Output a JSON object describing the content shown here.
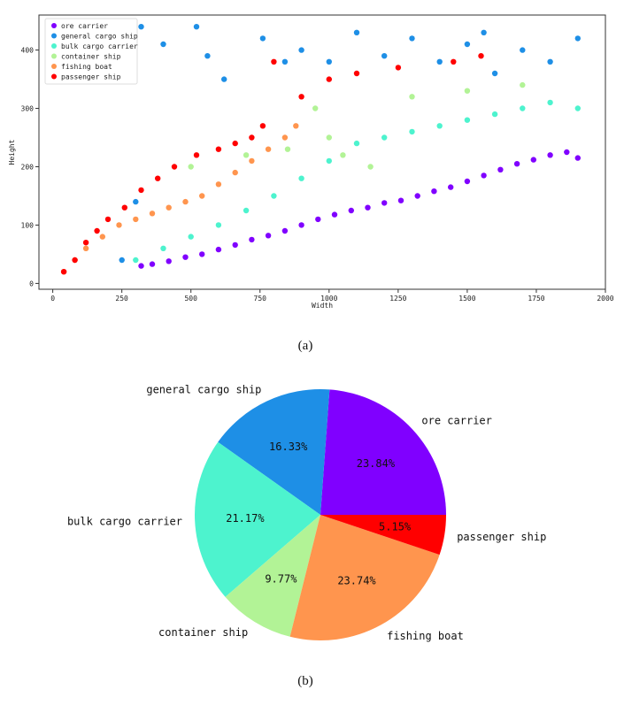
{
  "chart_data": [
    {
      "type": "scatter",
      "xlabel": "Width",
      "ylabel": "Height",
      "xlim": [
        -50,
        2000
      ],
      "ylim": [
        -10,
        460
      ],
      "xticks": [
        0,
        250,
        500,
        750,
        1000,
        1250,
        1500,
        1750,
        2000
      ],
      "yticks": [
        0,
        100,
        200,
        300,
        400
      ],
      "legend_position": "top-left",
      "series": [
        {
          "name": "ore carrier",
          "color": "#8000ff",
          "values": [
            [
              320,
              30
            ],
            [
              360,
              33
            ],
            [
              420,
              38
            ],
            [
              480,
              45
            ],
            [
              540,
              50
            ],
            [
              600,
              58
            ],
            [
              660,
              66
            ],
            [
              720,
              75
            ],
            [
              780,
              82
            ],
            [
              840,
              90
            ],
            [
              900,
              100
            ],
            [
              960,
              110
            ],
            [
              1020,
              118
            ],
            [
              1080,
              125
            ],
            [
              1140,
              130
            ],
            [
              1200,
              138
            ],
            [
              1260,
              142
            ],
            [
              1320,
              150
            ],
            [
              1380,
              158
            ],
            [
              1440,
              165
            ],
            [
              1500,
              175
            ],
            [
              1560,
              185
            ],
            [
              1620,
              195
            ],
            [
              1680,
              205
            ],
            [
              1740,
              212
            ],
            [
              1800,
              220
            ],
            [
              1860,
              225
            ],
            [
              1900,
              215
            ]
          ]
        },
        {
          "name": "general cargo ship",
          "color": "#1e8fe6",
          "values": [
            [
              250,
              40
            ],
            [
              300,
              140
            ],
            [
              320,
              440
            ],
            [
              400,
              410
            ],
            [
              520,
              440
            ],
            [
              560,
              390
            ],
            [
              620,
              350
            ],
            [
              760,
              420
            ],
            [
              840,
              380
            ],
            [
              900,
              400
            ],
            [
              1000,
              380
            ],
            [
              1100,
              430
            ],
            [
              1200,
              390
            ],
            [
              1300,
              420
            ],
            [
              1400,
              380
            ],
            [
              1500,
              410
            ],
            [
              1560,
              430
            ],
            [
              1600,
              360
            ],
            [
              1700,
              400
            ],
            [
              1800,
              380
            ],
            [
              1900,
              420
            ]
          ]
        },
        {
          "name": "bulk cargo carrier",
          "color": "#4df3ce",
          "values": [
            [
              300,
              40
            ],
            [
              400,
              60
            ],
            [
              500,
              80
            ],
            [
              600,
              100
            ],
            [
              700,
              125
            ],
            [
              800,
              150
            ],
            [
              900,
              180
            ],
            [
              1000,
              210
            ],
            [
              1100,
              240
            ],
            [
              1200,
              250
            ],
            [
              1300,
              260
            ],
            [
              1400,
              270
            ],
            [
              1500,
              280
            ],
            [
              1600,
              290
            ],
            [
              1700,
              300
            ],
            [
              1800,
              310
            ],
            [
              1900,
              300
            ]
          ]
        },
        {
          "name": "container ship",
          "color": "#b2f396",
          "values": [
            [
              500,
              200
            ],
            [
              700,
              220
            ],
            [
              850,
              230
            ],
            [
              950,
              300
            ],
            [
              1000,
              250
            ],
            [
              1050,
              220
            ],
            [
              1150,
              200
            ],
            [
              1300,
              320
            ],
            [
              1500,
              330
            ],
            [
              1700,
              340
            ]
          ]
        },
        {
          "name": "fishing boat",
          "color": "#ff954e",
          "values": [
            [
              40,
              20
            ],
            [
              80,
              40
            ],
            [
              120,
              60
            ],
            [
              180,
              80
            ],
            [
              240,
              100
            ],
            [
              300,
              110
            ],
            [
              360,
              120
            ],
            [
              420,
              130
            ],
            [
              480,
              140
            ],
            [
              540,
              150
            ],
            [
              600,
              170
            ],
            [
              660,
              190
            ],
            [
              720,
              210
            ],
            [
              780,
              230
            ],
            [
              840,
              250
            ],
            [
              880,
              270
            ]
          ]
        },
        {
          "name": "passenger ship",
          "color": "#ff0000",
          "values": [
            [
              40,
              20
            ],
            [
              80,
              40
            ],
            [
              120,
              70
            ],
            [
              160,
              90
            ],
            [
              200,
              110
            ],
            [
              260,
              130
            ],
            [
              320,
              160
            ],
            [
              380,
              180
            ],
            [
              440,
              200
            ],
            [
              520,
              220
            ],
            [
              600,
              230
            ],
            [
              660,
              240
            ],
            [
              720,
              250
            ],
            [
              760,
              270
            ],
            [
              800,
              380
            ],
            [
              900,
              320
            ],
            [
              1000,
              350
            ],
            [
              1100,
              360
            ],
            [
              1250,
              370
            ],
            [
              1450,
              380
            ],
            [
              1550,
              390
            ]
          ]
        }
      ]
    },
    {
      "type": "pie",
      "slices": [
        {
          "label": "ore carrier",
          "pct_label": "23.84%",
          "value": 23.84,
          "color": "#8000ff"
        },
        {
          "label": "passenger ship",
          "pct_label": "5.15%",
          "value": 5.15,
          "color": "#ff0000"
        },
        {
          "label": "fishing boat",
          "pct_label": "23.74%",
          "value": 23.74,
          "color": "#ff954e"
        },
        {
          "label": "container ship",
          "pct_label": "9.77%",
          "value": 9.77,
          "color": "#b2f396"
        },
        {
          "label": "bulk cargo carrier",
          "pct_label": "21.17%",
          "value": 21.17,
          "color": "#4df3ce"
        },
        {
          "label": "general cargo ship",
          "pct_label": "16.33%",
          "value": 16.33,
          "color": "#1e8fe6"
        }
      ]
    }
  ],
  "captions": {
    "a": "(a)",
    "b": "(b)"
  }
}
